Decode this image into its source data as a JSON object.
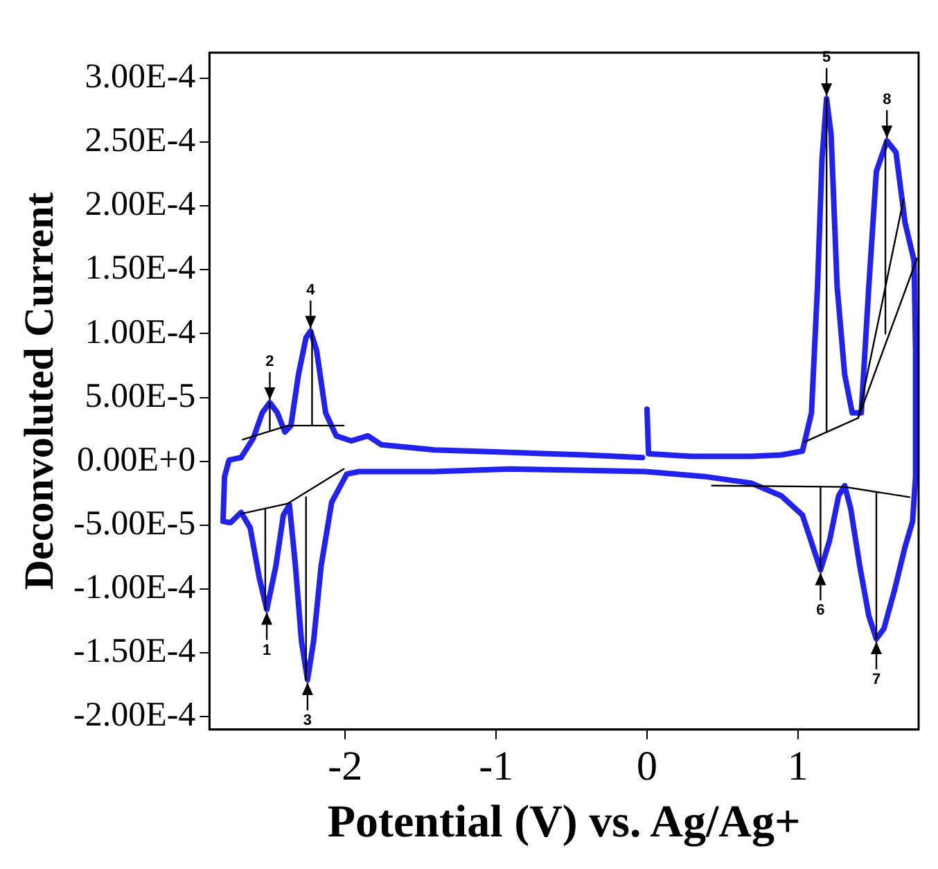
{
  "chart_data": {
    "type": "line",
    "xlabel": "Potential (V) vs. Ag/Ag+",
    "ylabel": "Deconvoluted Current",
    "xlim": [
      -2.9,
      1.8
    ],
    "xticks": [
      -2,
      -1,
      0,
      1
    ],
    "ylim": [
      -0.00021,
      0.00032
    ],
    "yticks": [
      {
        "value": -0.0002,
        "label": "-2.00E-4"
      },
      {
        "value": -0.00015,
        "label": "-1.50E-4"
      },
      {
        "value": -0.0001,
        "label": "-1.00E-4"
      },
      {
        "value": -5e-05,
        "label": "-5.00E-5"
      },
      {
        "value": 0,
        "label": "0.00E+0"
      },
      {
        "value": 5e-05,
        "label": "5.00E-5"
      },
      {
        "value": 0.0001,
        "label": "1.00E-4"
      },
      {
        "value": 0.00015,
        "label": "1.50E-4"
      },
      {
        "value": 0.0002,
        "label": "2.00E-4"
      },
      {
        "value": 0.00025,
        "label": "2.50E-4"
      },
      {
        "value": 0.0003,
        "label": "3.00E-4"
      }
    ],
    "legend": false,
    "marker": "none",
    "line_style": "solid",
    "series": [
      {
        "color": "#2222ee",
        "x": [
          0.0,
          0.01,
          0.29,
          0.69,
          0.89,
          1.03,
          1.09,
          1.13,
          1.16,
          1.19,
          1.22,
          1.26,
          1.31,
          1.36,
          1.42,
          1.47,
          1.52,
          1.59,
          1.65,
          1.71,
          1.77,
          1.78,
          1.78,
          1.76,
          1.71,
          1.64,
          1.57,
          1.52,
          1.47,
          1.41,
          1.35,
          1.31,
          1.27,
          1.21,
          1.15,
          1.1,
          1.03,
          0.89,
          0.69,
          0.39,
          -0.01,
          -0.41,
          -0.91,
          -1.41,
          -1.91,
          -1.99,
          -2.09,
          -2.16,
          -2.21,
          -2.25,
          -2.29,
          -2.33,
          -2.37,
          -2.41,
          -2.46,
          -2.52,
          -2.57,
          -2.63,
          -2.69,
          -2.76,
          -2.81,
          -2.8,
          -2.77,
          -2.69,
          -2.61,
          -2.55,
          -2.5,
          -2.45,
          -2.4,
          -2.36,
          -2.31,
          -2.26,
          -2.23,
          -2.19,
          -2.13,
          -2.06,
          -1.96,
          -1.85,
          -1.76,
          -1.41,
          -0.91,
          -0.41,
          -0.03
        ],
        "values": [
          4.08e-05,
          6e-06,
          4e-06,
          4e-06,
          5e-06,
          8e-06,
          3.8e-05,
          0.000137,
          0.000237,
          0.000284,
          0.000256,
          0.000137,
          6.8e-05,
          3.8e-05,
          3.8e-05,
          0.000137,
          0.000227,
          0.000251,
          0.000242,
          0.000187,
          0.000157,
          8.7e-05,
          -1.2e-05,
          -4.7e-05,
          -6.7e-05,
          -0.000101,
          -0.000131,
          -0.000139,
          -0.000121,
          -8.2e-05,
          -3.7e-05,
          -1.9e-05,
          -2.7e-05,
          -6.2e-05,
          -8.5e-05,
          -6.7e-05,
          -4.2e-05,
          -2.7e-05,
          -1.7e-05,
          -1.2e-05,
          -8e-06,
          -7e-06,
          -6e-06,
          -8e-06,
          -8e-06,
          -1e-05,
          -3.2e-05,
          -8.2e-05,
          -0.000141,
          -0.000171,
          -0.000141,
          -8.2e-05,
          -3.4e-05,
          -4.2e-05,
          -8.2e-05,
          -0.000116,
          -9.1e-05,
          -5.2e-05,
          -4e-05,
          -4.8e-05,
          -4.7e-05,
          -1.2e-05,
          1e-06,
          3e-06,
          1.8e-05,
          3.8e-05,
          4.6e-05,
          3.8e-05,
          2.3e-05,
          2.8e-05,
          6.8e-05,
          9.7e-05,
          0.000102,
          8.7e-05,
          3.8e-05,
          2e-05,
          1.6e-05,
          2e-05,
          1.3e-05,
          9e-06,
          7e-06,
          5e-06,
          3e-06
        ]
      },
      {
        "color": "#000000",
        "x": [
          -2.68,
          -2.38,
          -2.01
        ],
        "values": [
          1.7e-05,
          2.8e-05,
          2.8e-05
        ]
      },
      {
        "color": "#000000",
        "x": [
          -2.5,
          -2.5
        ],
        "values": [
          2.5e-05,
          4.6e-05
        ]
      },
      {
        "color": "#000000",
        "x": [
          -2.22,
          -2.22
        ],
        "values": [
          2.8e-05,
          0.000102
        ]
      },
      {
        "color": "#000000",
        "x": [
          -2.69,
          -2.38,
          -2.01
        ],
        "values": [
          -4.1e-05,
          -3.3e-05,
          -6e-06
        ]
      },
      {
        "color": "#000000",
        "x": [
          -2.53,
          -2.53
        ],
        "values": [
          -3.8e-05,
          -0.000116
        ]
      },
      {
        "color": "#000000",
        "x": [
          -2.26,
          -2.26
        ],
        "values": [
          -2.8e-05,
          -0.000171
        ]
      },
      {
        "color": "#000000",
        "x": [
          1.04,
          1.4,
          1.7
        ],
        "values": [
          1.5e-05,
          3.4e-05,
          0.000205
        ]
      },
      {
        "color": "#000000",
        "x": [
          1.4,
          1.79
        ],
        "values": [
          3.4e-05,
          0.000159
        ]
      },
      {
        "color": "#000000",
        "x": [
          1.19,
          1.19
        ],
        "values": [
          2.3e-05,
          0.000284
        ]
      },
      {
        "color": "#000000",
        "x": [
          1.58,
          1.58
        ],
        "values": [
          0.0001,
          0.000251
        ]
      },
      {
        "color": "#000000",
        "x": [
          0.43,
          1.31,
          1.74
        ],
        "values": [
          -1.9e-05,
          -2e-05,
          -2.8e-05
        ]
      },
      {
        "color": "#000000",
        "x": [
          1.15,
          1.15
        ],
        "values": [
          -2e-05,
          -8.5e-05
        ]
      },
      {
        "color": "#000000",
        "x": [
          1.52,
          1.52
        ],
        "values": [
          -2.4e-05,
          -0.000139
        ]
      }
    ],
    "annotations": [
      {
        "text": "1",
        "x": -2.52,
        "y": -0.000116
      },
      {
        "text": "2",
        "x": -2.5,
        "y": 4.6e-05
      },
      {
        "text": "3",
        "x": -2.25,
        "y": -0.000171
      },
      {
        "text": "4",
        "x": -2.23,
        "y": 0.000102
      },
      {
        "text": "5",
        "x": 1.19,
        "y": 0.000284
      },
      {
        "text": "6",
        "x": 1.15,
        "y": -8.5e-05
      },
      {
        "text": "7",
        "x": 1.52,
        "y": -0.000139
      },
      {
        "text": "8",
        "x": 1.59,
        "y": 0.000251
      }
    ]
  }
}
